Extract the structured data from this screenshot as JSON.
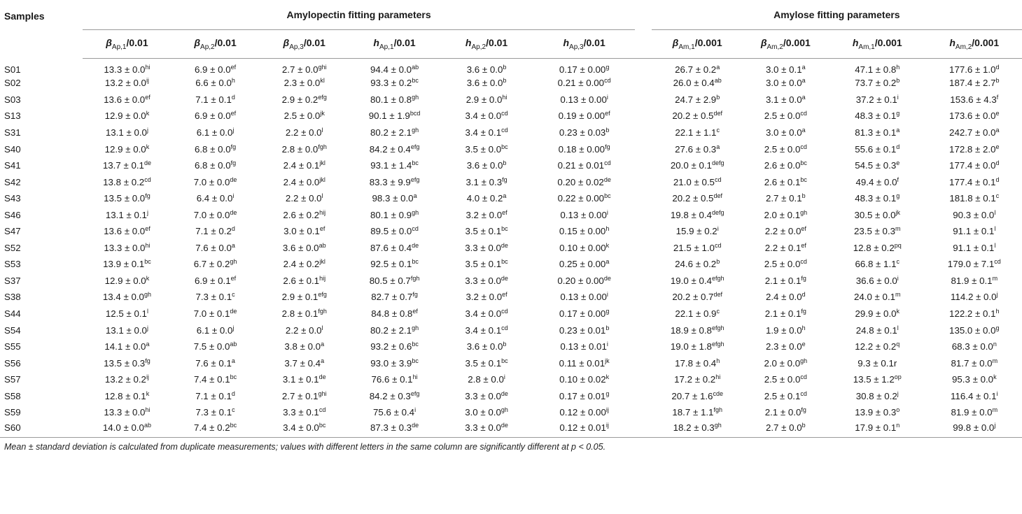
{
  "header": {
    "samples_label": "Samples",
    "amylopectin_label": "Amylopectin fitting parameters",
    "amylose_label": "Amylose fitting parameters",
    "columns": [
      {
        "sym": "β",
        "sub": "Ap,1",
        "unit": "/0.01"
      },
      {
        "sym": "β",
        "sub": "Ap,2",
        "unit": "/0.01"
      },
      {
        "sym": "β",
        "sub": "Ap,3",
        "unit": "/0.01"
      },
      {
        "sym": "h",
        "sub": "Ap,1",
        "unit": "/0.01"
      },
      {
        "sym": "h",
        "sub": "Ap,2",
        "unit": "/0.01"
      },
      {
        "sym": "h",
        "sub": "Ap,3",
        "unit": "/0.01"
      },
      {
        "sym": "β",
        "sub": "Am,1",
        "unit": "/0.001"
      },
      {
        "sym": "β",
        "sub": "Am,2",
        "unit": "/0.001"
      },
      {
        "sym": "h",
        "sub": "Am,1",
        "unit": "/0.001"
      },
      {
        "sym": "h",
        "sub": "Am,2",
        "unit": "/0.001"
      }
    ]
  },
  "rows": [
    {
      "sample": "S01",
      "cells": [
        [
          "13.3 ± 0.0",
          "hi"
        ],
        [
          "6.9 ± 0.0",
          "ef"
        ],
        [
          "2.7 ± 0.0",
          "ghi"
        ],
        [
          "94.4 ± 0.0",
          "ab"
        ],
        [
          "3.6 ± 0.0",
          "b"
        ],
        [
          "0.17 ± 0.00",
          "g"
        ],
        [
          "26.7 ± 0.2",
          "a"
        ],
        [
          "3.0 ± 0.1",
          "a"
        ],
        [
          "47.1 ± 0.8",
          "h"
        ],
        [
          "177.6 ± 1.0",
          "d"
        ]
      ]
    },
    {
      "sample": "S02",
      "cells": [
        [
          "13.2 ± 0.0",
          "ij"
        ],
        [
          "6.6 ± 0.0",
          "h"
        ],
        [
          "2.3 ± 0.0",
          "kl"
        ],
        [
          "93.3 ± 0.2",
          "bc"
        ],
        [
          "3.6 ± 0.0",
          "b"
        ],
        [
          "0.21 ± 0.00",
          "cd"
        ],
        [
          "26.0 ± 0.4",
          "ab"
        ],
        [
          "3.0 ± 0.0",
          "a"
        ],
        [
          "73.7 ± 0.2",
          "b"
        ],
        [
          "187.4 ± 2.7",
          "b"
        ]
      ]
    },
    {
      "sample": "S03",
      "cells": [
        [
          "13.6 ± 0.0",
          "ef"
        ],
        [
          "7.1 ± 0.1",
          "d"
        ],
        [
          "2.9 ± 0.2",
          "efg"
        ],
        [
          "80.1 ± 0.8",
          "gh"
        ],
        [
          "2.9 ± 0.0",
          "hi"
        ],
        [
          "0.13 ± 0.00",
          "i"
        ],
        [
          "24.7 ± 2.9",
          "b"
        ],
        [
          "3.1 ± 0.0",
          "a"
        ],
        [
          "37.2 ± 0.1",
          "i"
        ],
        [
          "153.6 ± 4.3",
          "f"
        ]
      ]
    },
    {
      "sample": "S13",
      "cells": [
        [
          "12.9 ± 0.0",
          "k"
        ],
        [
          "6.9 ± 0.0",
          "ef"
        ],
        [
          "2.5 ± 0.0",
          "jk"
        ],
        [
          "90.1 ± 1.9",
          "bcd"
        ],
        [
          "3.4 ± 0.0",
          "cd"
        ],
        [
          "0.19 ± 0.00",
          "ef"
        ],
        [
          "20.2 ± 0.5",
          "def"
        ],
        [
          "2.5 ± 0.0",
          "cd"
        ],
        [
          "48.3 ± 0.1",
          "g"
        ],
        [
          "173.6 ± 0.0",
          "e"
        ]
      ]
    },
    {
      "sample": "S31",
      "cells": [
        [
          "13.1 ± 0.0",
          "j"
        ],
        [
          "6.1 ± 0.0",
          "j"
        ],
        [
          "2.2 ± 0.0",
          "l"
        ],
        [
          "80.2 ± 2.1",
          "gh"
        ],
        [
          "3.4 ± 0.1",
          "cd"
        ],
        [
          "0.23 ± 0.03",
          "b"
        ],
        [
          "22.1 ± 1.1",
          "c"
        ],
        [
          "3.0 ± 0.0",
          "a"
        ],
        [
          "81.3 ± 0.1",
          "a"
        ],
        [
          "242.7 ± 0.0",
          "a"
        ]
      ]
    },
    {
      "sample": "S40",
      "cells": [
        [
          "12.9 ± 0.0",
          "k"
        ],
        [
          "6.8 ± 0.0",
          "fg"
        ],
        [
          "2.8 ± 0.0",
          "fgh"
        ],
        [
          "84.2 ± 0.4",
          "efg"
        ],
        [
          "3.5 ± 0.0",
          "bc"
        ],
        [
          "0.18 ± 0.00",
          "fg"
        ],
        [
          "27.6 ± 0.3",
          "a"
        ],
        [
          "2.5 ± 0.0",
          "cd"
        ],
        [
          "55.6 ± 0.1",
          "d"
        ],
        [
          "172.8 ± 2.0",
          "e"
        ]
      ]
    },
    {
      "sample": "S41",
      "cells": [
        [
          "13.7 ± 0.1",
          "de"
        ],
        [
          "6.8 ± 0.0",
          "fg"
        ],
        [
          "2.4 ± 0.1",
          "jkl"
        ],
        [
          "93.1 ± 1.4",
          "bc"
        ],
        [
          "3.6 ± 0.0",
          "b"
        ],
        [
          "0.21 ± 0.01",
          "cd"
        ],
        [
          "20.0 ± 0.1",
          "defg"
        ],
        [
          "2.6 ± 0.0",
          "bc"
        ],
        [
          "54.5 ± 0.3",
          "e"
        ],
        [
          "177.4 ± 0.0",
          "d"
        ]
      ]
    },
    {
      "sample": "S42",
      "cells": [
        [
          "13.8 ± 0.2",
          "cd"
        ],
        [
          "7.0 ± 0.0",
          "de"
        ],
        [
          "2.4 ± 0.0",
          "jkl"
        ],
        [
          "83.3 ± 9.9",
          "efg"
        ],
        [
          "3.1 ± 0.3",
          "fg"
        ],
        [
          "0.20 ± 0.02",
          "de"
        ],
        [
          "21.0 ± 0.5",
          "cd"
        ],
        [
          "2.6 ± 0.1",
          "bc"
        ],
        [
          "49.4 ± 0.0",
          "f"
        ],
        [
          "177.4 ± 0.1",
          "d"
        ]
      ]
    },
    {
      "sample": "S43",
      "cells": [
        [
          "13.5 ± 0.0",
          "fg"
        ],
        [
          "6.4 ± 0.0",
          "i"
        ],
        [
          "2.2 ± 0.0",
          "l"
        ],
        [
          "98.3 ± 0.0",
          "a"
        ],
        [
          "4.0 ± 0.2",
          "a"
        ],
        [
          "0.22 ± 0.00",
          "bc"
        ],
        [
          "20.2 ± 0.5",
          "def"
        ],
        [
          "2.7 ± 0.1",
          "b"
        ],
        [
          "48.3 ± 0.1",
          "g"
        ],
        [
          "181.8 ± 0.1",
          "c"
        ]
      ]
    },
    {
      "sample": "S46",
      "cells": [
        [
          "13.1 ± 0.1",
          "j"
        ],
        [
          "7.0 ± 0.0",
          "de"
        ],
        [
          "2.6 ± 0.2",
          "hij"
        ],
        [
          "80.1 ± 0.9",
          "gh"
        ],
        [
          "3.2 ± 0.0",
          "ef"
        ],
        [
          "0.13 ± 0.00",
          "i"
        ],
        [
          "19.8 ± 0.4",
          "defg"
        ],
        [
          "2.0 ± 0.1",
          "gh"
        ],
        [
          "30.5 ± 0.0",
          "jk"
        ],
        [
          "90.3 ± 0.0",
          "l"
        ]
      ]
    },
    {
      "sample": "S47",
      "cells": [
        [
          "13.6 ± 0.0",
          "ef"
        ],
        [
          "7.1 ± 0.2",
          "d"
        ],
        [
          "3.0 ± 0.1",
          "ef"
        ],
        [
          "89.5 ± 0.0",
          "cd"
        ],
        [
          "3.5 ± 0.1",
          "bc"
        ],
        [
          "0.15 ± 0.00",
          "h"
        ],
        [
          "15.9 ± 0.2",
          "i"
        ],
        [
          "2.2 ± 0.0",
          "ef"
        ],
        [
          "23.5 ± 0.3",
          "m"
        ],
        [
          "91.1 ± 0.1",
          "l"
        ]
      ]
    },
    {
      "sample": "S52",
      "cells": [
        [
          "13.3 ± 0.0",
          "hi"
        ],
        [
          "7.6 ± 0.0",
          "a"
        ],
        [
          "3.6 ± 0.0",
          "ab"
        ],
        [
          "87.6 ± 0.4",
          "de"
        ],
        [
          "3.3 ± 0.0",
          "de"
        ],
        [
          "0.10 ± 0.00",
          "k"
        ],
        [
          "21.5 ± 1.0",
          "cd"
        ],
        [
          "2.2 ± 0.1",
          "ef"
        ],
        [
          "12.8 ± 0.2",
          "pq"
        ],
        [
          "91.1 ± 0.1",
          "l"
        ]
      ]
    },
    {
      "sample": "S53",
      "cells": [
        [
          "13.9 ± 0.1",
          "bc"
        ],
        [
          "6.7 ± 0.2",
          "gh"
        ],
        [
          "2.4 ± 0.2",
          "jkl"
        ],
        [
          "92.5 ± 0.1",
          "bc"
        ],
        [
          "3.5 ± 0.1",
          "bc"
        ],
        [
          "0.25 ± 0.00",
          "a"
        ],
        [
          "24.6 ± 0.2",
          "b"
        ],
        [
          "2.5 ± 0.0",
          "cd"
        ],
        [
          "66.8 ± 1.1",
          "c"
        ],
        [
          "179.0 ± 7.1",
          "cd"
        ]
      ]
    },
    {
      "sample": "S37",
      "cells": [
        [
          "12.9 ± 0.0",
          "k"
        ],
        [
          "6.9 ± 0.1",
          "ef"
        ],
        [
          "2.6 ± 0.1",
          "hij"
        ],
        [
          "80.5 ± 0.7",
          "fgh"
        ],
        [
          "3.3 ± 0.0",
          "de"
        ],
        [
          "0.20 ± 0.00",
          "de"
        ],
        [
          "19.0 ± 0.4",
          "efgh"
        ],
        [
          "2.1 ± 0.1",
          "fg"
        ],
        [
          "36.6 ± 0.0",
          "i"
        ],
        [
          "81.9 ± 0.1",
          "m"
        ]
      ]
    },
    {
      "sample": "S38",
      "cells": [
        [
          "13.4 ± 0.0",
          "gh"
        ],
        [
          "7.3 ± 0.1",
          "c"
        ],
        [
          "2.9 ± 0.1",
          "efg"
        ],
        [
          "82.7 ± 0.7",
          "fg"
        ],
        [
          "3.2 ± 0.0",
          "ef"
        ],
        [
          "0.13 ± 0.00",
          "i"
        ],
        [
          "20.2 ± 0.7",
          "def"
        ],
        [
          "2.4 ± 0.0",
          "d"
        ],
        [
          "24.0 ± 0.1",
          "m"
        ],
        [
          "114.2 ± 0.0",
          "j"
        ]
      ]
    },
    {
      "sample": "S44",
      "cells": [
        [
          "12.5 ± 0.1",
          "l"
        ],
        [
          "7.0 ± 0.1",
          "de"
        ],
        [
          "2.8 ± 0.1",
          "fgh"
        ],
        [
          "84.8 ± 0.8",
          "ef"
        ],
        [
          "3.4 ± 0.0",
          "cd"
        ],
        [
          "0.17 ± 0.00",
          "g"
        ],
        [
          "22.1 ± 0.9",
          "c"
        ],
        [
          "2.1 ± 0.1",
          "fg"
        ],
        [
          "29.9 ± 0.0",
          "k"
        ],
        [
          "122.2 ± 0.1",
          "h"
        ]
      ]
    },
    {
      "sample": "S54",
      "cells": [
        [
          "13.1 ± 0.0",
          "j"
        ],
        [
          "6.1 ± 0.0",
          "j"
        ],
        [
          "2.2 ± 0.0",
          "l"
        ],
        [
          "80.2 ± 2.1",
          "gh"
        ],
        [
          "3.4 ± 0.1",
          "cd"
        ],
        [
          "0.23 ± 0.01",
          "b"
        ],
        [
          "18.9 ± 0.8",
          "efgh"
        ],
        [
          "1.9 ± 0.0",
          "h"
        ],
        [
          "24.8 ± 0.1",
          "l"
        ],
        [
          "135.0 ± 0.0",
          "g"
        ]
      ]
    },
    {
      "sample": "S55",
      "cells": [
        [
          "14.1 ± 0.0",
          "a"
        ],
        [
          "7.5 ± 0.0",
          "ab"
        ],
        [
          "3.8 ± 0.0",
          "a"
        ],
        [
          "93.2 ± 0.6",
          "bc"
        ],
        [
          "3.6 ± 0.0",
          "b"
        ],
        [
          "0.13 ± 0.01",
          "i"
        ],
        [
          "19.0 ± 1.8",
          "efgh"
        ],
        [
          "2.3 ± 0.0",
          "e"
        ],
        [
          "12.2 ± 0.2",
          "q"
        ],
        [
          "68.3 ± 0.0",
          "n"
        ]
      ]
    },
    {
      "sample": "S56",
      "cells": [
        [
          "13.5 ± 0.3",
          "fg"
        ],
        [
          "7.6 ± 0.1",
          "a"
        ],
        [
          "3.7 ± 0.4",
          "a"
        ],
        [
          "93.0 ± 3.9",
          "bc"
        ],
        [
          "3.5 ± 0.1",
          "bc"
        ],
        [
          "0.11 ± 0.01",
          "jk"
        ],
        [
          "17.8 ± 0.4",
          "h"
        ],
        [
          "2.0 ± 0.0",
          "gh"
        ],
        [
          "9.3 ± 0.1r",
          ""
        ],
        [
          "81.7 ± 0.0",
          "m"
        ]
      ]
    },
    {
      "sample": "S57",
      "cells": [
        [
          "13.2 ± 0.2",
          "ij"
        ],
        [
          "7.4 ± 0.1",
          "bc"
        ],
        [
          "3.1 ± 0.1",
          "de"
        ],
        [
          "76.6 ± 0.1",
          "hi"
        ],
        [
          "2.8 ± 0.0",
          "i"
        ],
        [
          "0.10 ± 0.02",
          "k"
        ],
        [
          "17.2 ± 0.2",
          "hi"
        ],
        [
          "2.5 ± 0.0",
          "cd"
        ],
        [
          "13.5 ± 1.2",
          "op"
        ],
        [
          "95.3 ± 0.0",
          "k"
        ]
      ]
    },
    {
      "sample": "S58",
      "cells": [
        [
          "12.8 ± 0.1",
          "k"
        ],
        [
          "7.1 ± 0.1",
          "d"
        ],
        [
          "2.7 ± 0.1",
          "ghi"
        ],
        [
          "84.2 ± 0.3",
          "efg"
        ],
        [
          "3.3 ± 0.0",
          "de"
        ],
        [
          "0.17 ± 0.01",
          "g"
        ],
        [
          "20.7 ± 1.6",
          "cde"
        ],
        [
          "2.5 ± 0.1",
          "cd"
        ],
        [
          "30.8 ± 0.2",
          "j"
        ],
        [
          "116.4 ± 0.1",
          "i"
        ]
      ]
    },
    {
      "sample": "S59",
      "cells": [
        [
          "13.3 ± 0.0",
          "hi"
        ],
        [
          "7.3 ± 0.1",
          "c"
        ],
        [
          "3.3 ± 0.1",
          "cd"
        ],
        [
          "75.6 ± 0.4",
          "i"
        ],
        [
          "3.0 ± 0.0",
          "gh"
        ],
        [
          "0.12 ± 0.00",
          "ij"
        ],
        [
          "18.7 ± 1.1",
          "fgh"
        ],
        [
          "2.1 ± 0.0",
          "fg"
        ],
        [
          "13.9 ± 0.3",
          "o"
        ],
        [
          "81.9 ± 0.0",
          "m"
        ]
      ]
    },
    {
      "sample": "S60",
      "cells": [
        [
          "14.0 ± 0.0",
          "ab"
        ],
        [
          "7.4 ± 0.2",
          "bc"
        ],
        [
          "3.4 ± 0.0",
          "bc"
        ],
        [
          "87.3 ± 0.3",
          "de"
        ],
        [
          "3.3 ± 0.0",
          "de"
        ],
        [
          "0.12 ± 0.01",
          "ij"
        ],
        [
          "18.2 ± 0.3",
          "gh"
        ],
        [
          "2.7 ± 0.0",
          "b"
        ],
        [
          "17.9 ± 0.1",
          "n"
        ],
        [
          "99.8 ± 0.0",
          "j"
        ]
      ]
    }
  ],
  "footnote": "Mean ± standard deviation is calculated from duplicate measurements; values with different letters in the same column are significantly different at p < 0.05."
}
